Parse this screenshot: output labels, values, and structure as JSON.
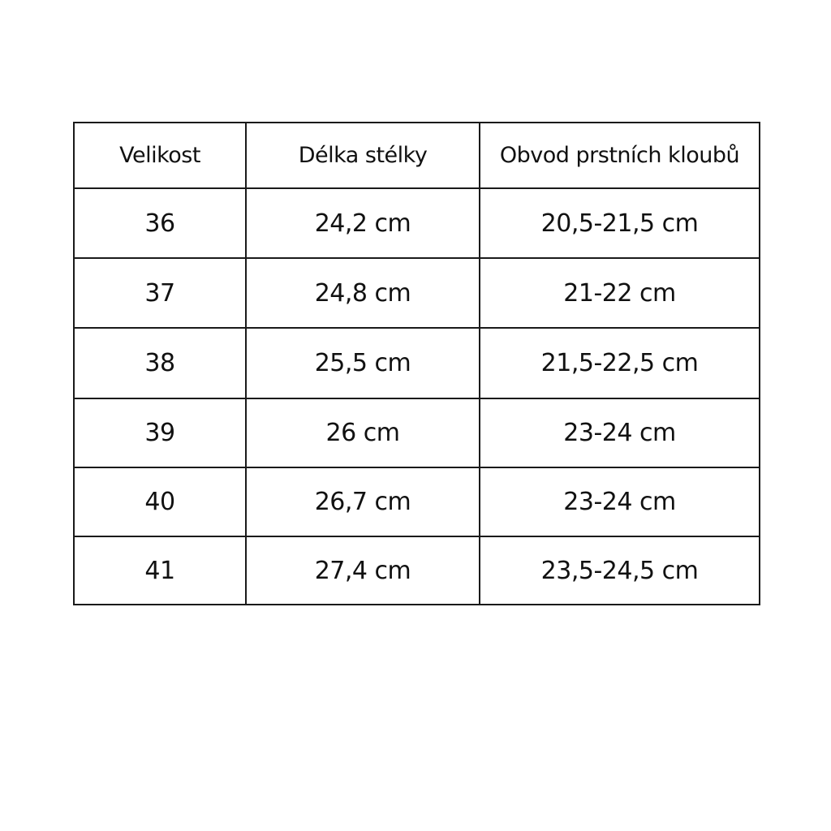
{
  "table": {
    "headers": [
      "Velikost",
      "Délka stélky",
      "Obvod prstních kloubů"
    ],
    "rows": [
      [
        "36",
        "24,2 cm",
        "20,5-21,5 cm"
      ],
      [
        "37",
        "24,8 cm",
        "21-22 cm"
      ],
      [
        "38",
        "25,5 cm",
        "21,5-22,5 cm"
      ],
      [
        "39",
        "26 cm",
        "23-24 cm"
      ],
      [
        "40",
        "26,7 cm",
        "23-24 cm"
      ],
      [
        "41",
        "27,4 cm",
        "23,5-24,5 cm"
      ]
    ]
  }
}
